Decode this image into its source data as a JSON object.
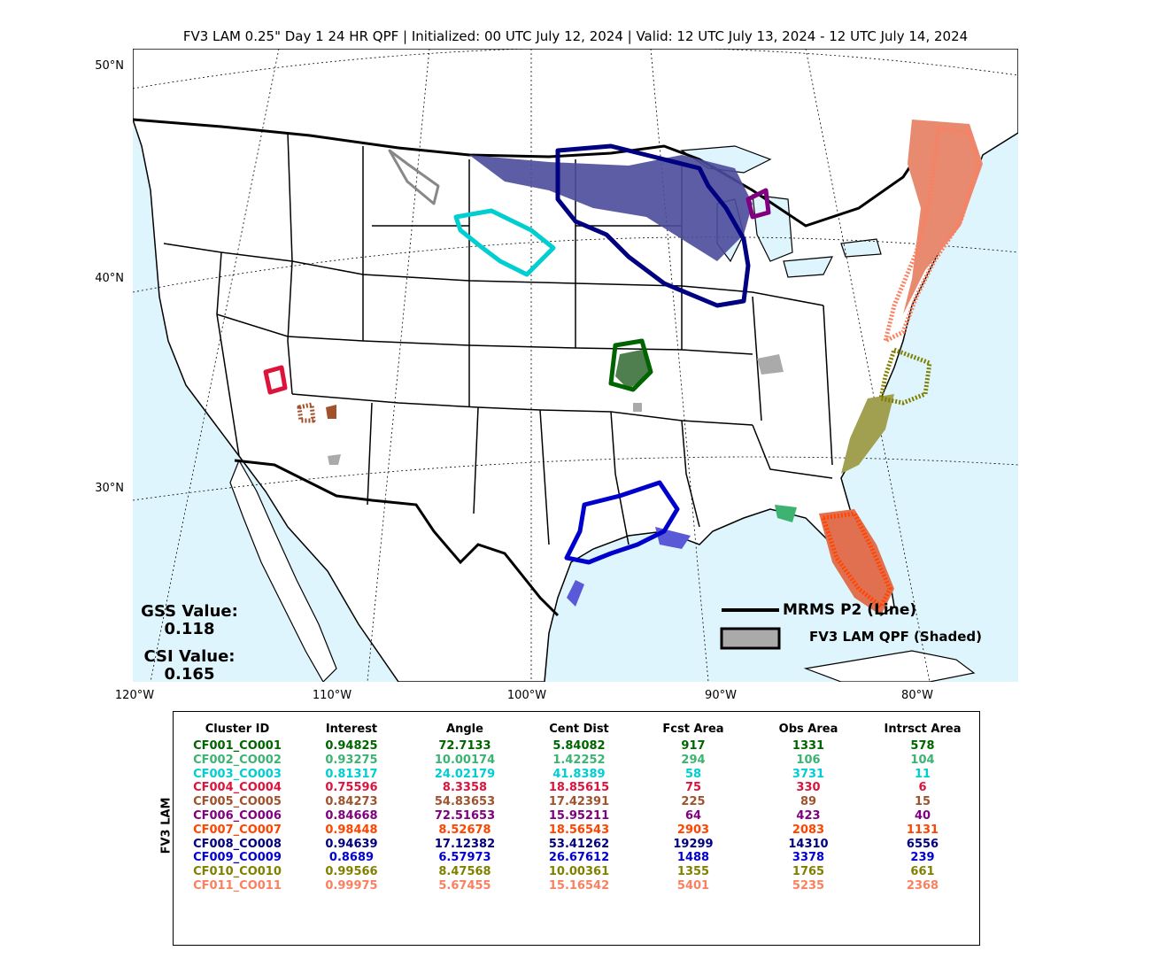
{
  "title": "FV3 LAM 0.25\" Day 1 24 HR QPF | Initialized: 00 UTC July 12, 2024 | Valid: 12 UTC July 13, 2024 - 12 UTC July 14, 2024",
  "map": {
    "lat_labels": [
      "50°N",
      "40°N",
      "30°N"
    ],
    "lon_labels": [
      "120°W",
      "110°W",
      "100°W",
      "90°W",
      "80°W"
    ],
    "ocean_color": "#dff5fd",
    "land_color": "#ffffff"
  },
  "stats": {
    "gss_label": "GSS Value:",
    "gss_value": "0.118",
    "csi_label": "CSI Value:",
    "csi_value": "0.165"
  },
  "legend": {
    "line_label": "MRMS P2 (Line)",
    "shaded_label": "FV3 LAM QPF (Shaded)"
  },
  "table": {
    "side_label": "FV3 LAM",
    "headers": [
      "Cluster ID",
      "Interest",
      "Angle",
      "Cent Dist",
      "Fcst Area",
      "Obs Area",
      "Intrsct Area"
    ],
    "rows": [
      {
        "color": "#006400",
        "cells": [
          "CF001_CO001",
          "0.94825",
          "72.7133",
          "5.84082",
          "917",
          "1331",
          "578"
        ]
      },
      {
        "color": "#3cb371",
        "cells": [
          "CF002_CO002",
          "0.93275",
          "10.00174",
          "1.42252",
          "294",
          "106",
          "104"
        ]
      },
      {
        "color": "#00ced1",
        "cells": [
          "CF003_CO003",
          "0.81317",
          "24.02179",
          "41.8389",
          "58",
          "3731",
          "11"
        ]
      },
      {
        "color": "#dc143c",
        "cells": [
          "CF004_CO004",
          "0.75596",
          "8.3358",
          "18.85615",
          "75",
          "330",
          "6"
        ]
      },
      {
        "color": "#a0522d",
        "cells": [
          "CF005_CO005",
          "0.84273",
          "54.83653",
          "17.42391",
          "225",
          "89",
          "15"
        ]
      },
      {
        "color": "#800080",
        "cells": [
          "CF006_CO006",
          "0.84668",
          "72.51653",
          "15.95211",
          "64",
          "423",
          "40"
        ]
      },
      {
        "color": "#ff4500",
        "cells": [
          "CF007_CO007",
          "0.98448",
          "8.52678",
          "18.56543",
          "2903",
          "2083",
          "1131"
        ]
      },
      {
        "color": "#000080",
        "cells": [
          "CF008_CO008",
          "0.94639",
          "17.12382",
          "53.41262",
          "19299",
          "14310",
          "6556"
        ]
      },
      {
        "color": "#0000cd",
        "cells": [
          "CF009_CO009",
          "0.8689",
          "6.57973",
          "26.67612",
          "1488",
          "3378",
          "239"
        ]
      },
      {
        "color": "#808000",
        "cells": [
          "CF010_CO010",
          "0.99566",
          "8.47568",
          "10.00361",
          "1355",
          "1765",
          "661"
        ]
      },
      {
        "color": "#fa8060",
        "cells": [
          "CF011_CO011",
          "0.99975",
          "5.67455",
          "15.16542",
          "5401",
          "5235",
          "2368"
        ]
      }
    ]
  }
}
